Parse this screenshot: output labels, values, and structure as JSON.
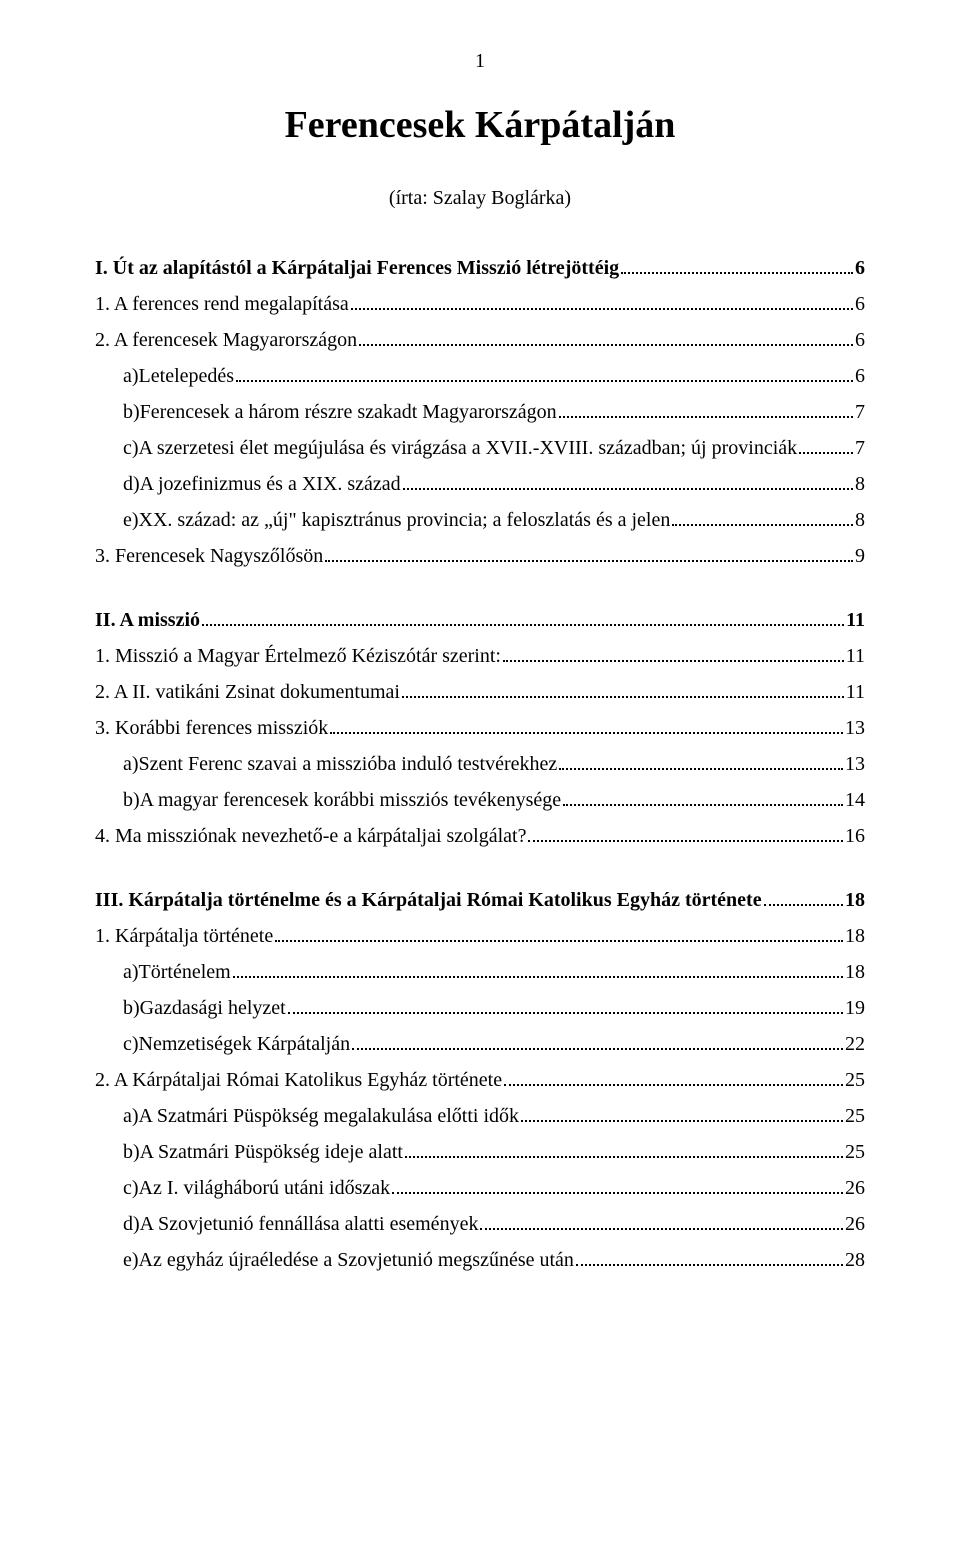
{
  "page_number": "1",
  "title": "Ferencesek Kárpátalján",
  "author": "(írta: Szalay Boglárka)",
  "toc": [
    {
      "label": "I. Út az alapítástól a Kárpátaljai Ferences Misszió létrejöttéig",
      "page": "6",
      "level": 0,
      "bold": true
    },
    {
      "label": "1. A ferences rend megalapítása",
      "page": "6",
      "level": 1,
      "bold": false
    },
    {
      "label": "2. A ferencesek Magyarországon",
      "page": "6",
      "level": 1,
      "bold": false
    },
    {
      "label": "a)Letelepedés",
      "page": "6",
      "level": 2,
      "bold": false
    },
    {
      "label": "b)Ferencesek a három részre szakadt Magyarországon",
      "page": "7",
      "level": 2,
      "bold": false
    },
    {
      "label": "c)A szerzetesi élet megújulása és virágzása a XVII.-XVIII. században; új provinciák",
      "page": "7",
      "level": 2,
      "bold": false
    },
    {
      "label": "d)A jozefinizmus és a XIX. század",
      "page": "8",
      "level": 2,
      "bold": false
    },
    {
      "label": "e)XX. század: az „új\" kapisztránus provincia; a feloszlatás és a jelen",
      "page": "8",
      "level": 2,
      "bold": false
    },
    {
      "label": "3. Ferencesek Nagyszőlősön",
      "page": "9",
      "level": 1,
      "bold": false
    },
    {
      "gap": true
    },
    {
      "label": "II. A misszió",
      "page": "11",
      "level": 0,
      "bold": true
    },
    {
      "label": "1. Misszió a Magyar Értelmező Kéziszótár szerint:",
      "page": "11",
      "level": 1,
      "bold": false
    },
    {
      "label": "2. A II. vatikáni Zsinat dokumentumai",
      "page": "11",
      "level": 1,
      "bold": false
    },
    {
      "label": "3. Korábbi ferences missziók",
      "page": "13",
      "level": 1,
      "bold": false
    },
    {
      "label": "a)Szent Ferenc szavai a misszióba induló testvérekhez",
      "page": "13",
      "level": 2,
      "bold": false
    },
    {
      "label": "b)A magyar ferencesek korábbi missziós tevékenysége",
      "page": "14",
      "level": 2,
      "bold": false
    },
    {
      "label": "4. Ma missziónak nevezhető-e a kárpátaljai szolgálat?",
      "page": "16",
      "level": 1,
      "bold": false
    },
    {
      "gap": true
    },
    {
      "label": "III. Kárpátalja történelme és a Kárpátaljai Római Katolikus Egyház története",
      "page": "18",
      "level": 0,
      "bold": true
    },
    {
      "label": "1. Kárpátalja története",
      "page": "18",
      "level": 1,
      "bold": false
    },
    {
      "label": "a)Történelem",
      "page": "18",
      "level": 2,
      "bold": false
    },
    {
      "label": "b)Gazdasági helyzet",
      "page": "19",
      "level": 2,
      "bold": false
    },
    {
      "label": "c)Nemzetiségek Kárpátalján",
      "page": "22",
      "level": 2,
      "bold": false
    },
    {
      "label": "2. A Kárpátaljai Római Katolikus Egyház története",
      "page": "25",
      "level": 1,
      "bold": false
    },
    {
      "label": "a)A Szatmári Püspökség megalakulása előtti idők",
      "page": "25",
      "level": 2,
      "bold": false
    },
    {
      "label": "b)A Szatmári Püspökség ideje alatt",
      "page": "25",
      "level": 2,
      "bold": false
    },
    {
      "label": "c)Az I. világháború utáni időszak",
      "page": "26",
      "level": 2,
      "bold": false
    },
    {
      "label": "d)A Szovjetunió fennállása alatti események",
      "page": "26",
      "level": 2,
      "bold": false
    },
    {
      "label": "e)Az egyház újraéledése a Szovjetunió megszűnése után",
      "page": "28",
      "level": 2,
      "bold": false
    }
  ]
}
